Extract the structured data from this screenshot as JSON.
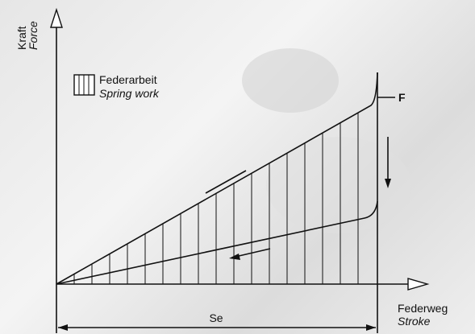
{
  "axis_y": {
    "label_de": "Kraft",
    "label_en": "Force"
  },
  "axis_x": {
    "label_de": "Federweg",
    "label_en": "Stroke"
  },
  "legend": {
    "label_de": "Federarbeit",
    "label_en": "Spring work"
  },
  "force_label": "F",
  "dimension_label": "Se"
}
